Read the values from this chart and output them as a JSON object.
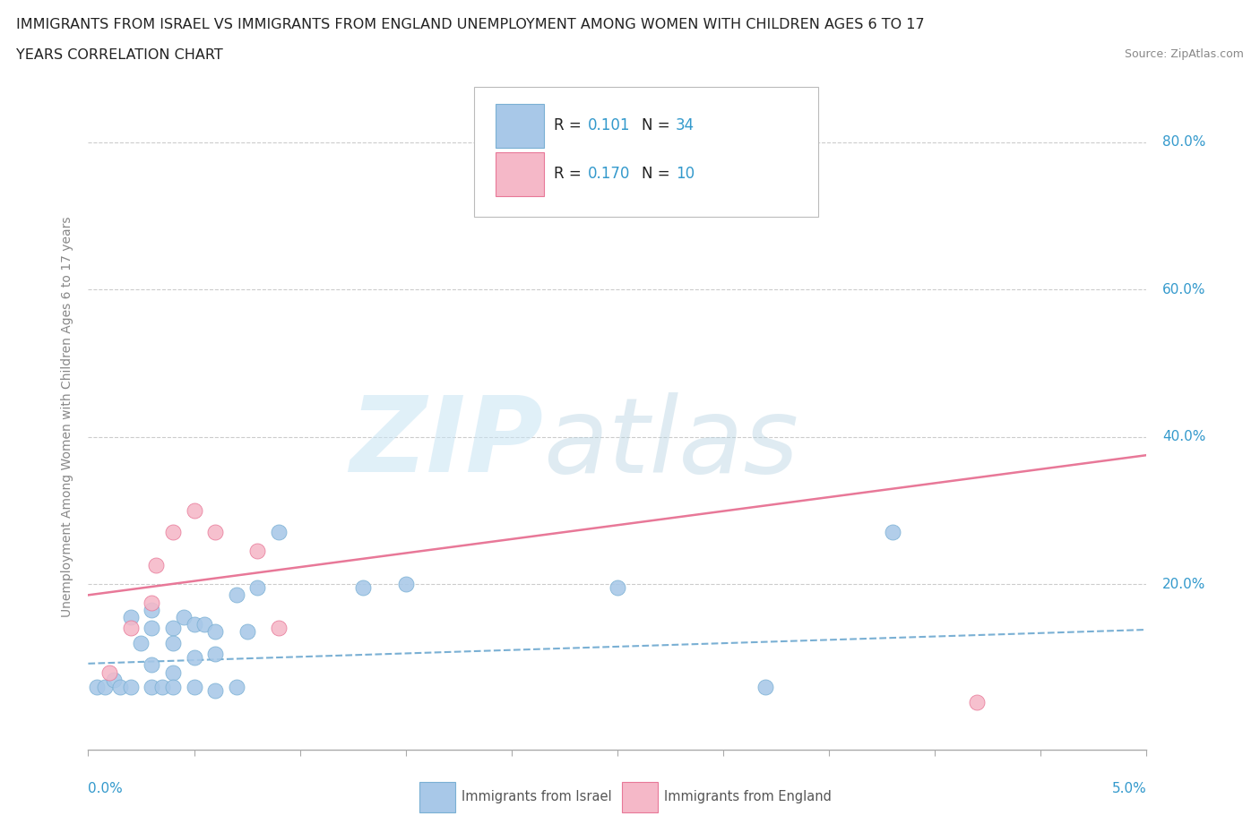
{
  "title_line1": "IMMIGRANTS FROM ISRAEL VS IMMIGRANTS FROM ENGLAND UNEMPLOYMENT AMONG WOMEN WITH CHILDREN AGES 6 TO 17",
  "title_line2": "YEARS CORRELATION CHART",
  "source": "Source: ZipAtlas.com",
  "ylabel": "Unemployment Among Women with Children Ages 6 to 17 years",
  "xlim": [
    0.0,
    0.05
  ],
  "ylim": [
    -0.025,
    0.88
  ],
  "israel_R": "0.101",
  "israel_N": "34",
  "england_R": "0.170",
  "england_N": "10",
  "israel_color": "#a8c8e8",
  "israel_edge": "#7ab0d4",
  "england_color": "#f5b8c8",
  "england_edge": "#e87898",
  "israel_line_color": "#7ab0d4",
  "england_line_color": "#e87898",
  "ytick_values": [
    0.0,
    0.2,
    0.4,
    0.6,
    0.8
  ],
  "ytick_labels": [
    "",
    "20.0%",
    "40.0%",
    "60.0%",
    "80.0%"
  ],
  "israel_x": [
    0.0004,
    0.0008,
    0.0012,
    0.0015,
    0.002,
    0.002,
    0.0025,
    0.003,
    0.003,
    0.003,
    0.003,
    0.0035,
    0.004,
    0.004,
    0.004,
    0.004,
    0.0045,
    0.005,
    0.005,
    0.005,
    0.0055,
    0.006,
    0.006,
    0.006,
    0.007,
    0.007,
    0.0075,
    0.008,
    0.009,
    0.013,
    0.015,
    0.025,
    0.032,
    0.038
  ],
  "israel_y": [
    0.06,
    0.06,
    0.07,
    0.06,
    0.06,
    0.155,
    0.12,
    0.06,
    0.09,
    0.14,
    0.165,
    0.06,
    0.08,
    0.14,
    0.12,
    0.06,
    0.155,
    0.1,
    0.145,
    0.06,
    0.145,
    0.105,
    0.135,
    0.055,
    0.185,
    0.06,
    0.135,
    0.195,
    0.27,
    0.195,
    0.2,
    0.195,
    0.06,
    0.27
  ],
  "england_x": [
    0.001,
    0.002,
    0.003,
    0.0032,
    0.004,
    0.005,
    0.006,
    0.008,
    0.009,
    0.042
  ],
  "england_y": [
    0.08,
    0.14,
    0.175,
    0.225,
    0.27,
    0.3,
    0.27,
    0.245,
    0.14,
    0.04
  ],
  "israel_trend_x": [
    0.0,
    0.05
  ],
  "israel_trend_y": [
    0.092,
    0.138
  ],
  "england_trend_x": [
    0.0,
    0.05
  ],
  "england_trend_y": [
    0.185,
    0.375
  ],
  "legend_israel_label": "Immigrants from Israel",
  "legend_england_label": "Immigrants from England",
  "bg_color": "#ffffff",
  "grid_color": "#cccccc",
  "axis_color": "#aaaaaa",
  "tick_label_color": "#3399cc",
  "ylabel_color": "#888888",
  "title_color": "#222222",
  "source_color": "#888888",
  "watermark_color1": "#c8e4f4",
  "watermark_color2": "#b0cfe0"
}
